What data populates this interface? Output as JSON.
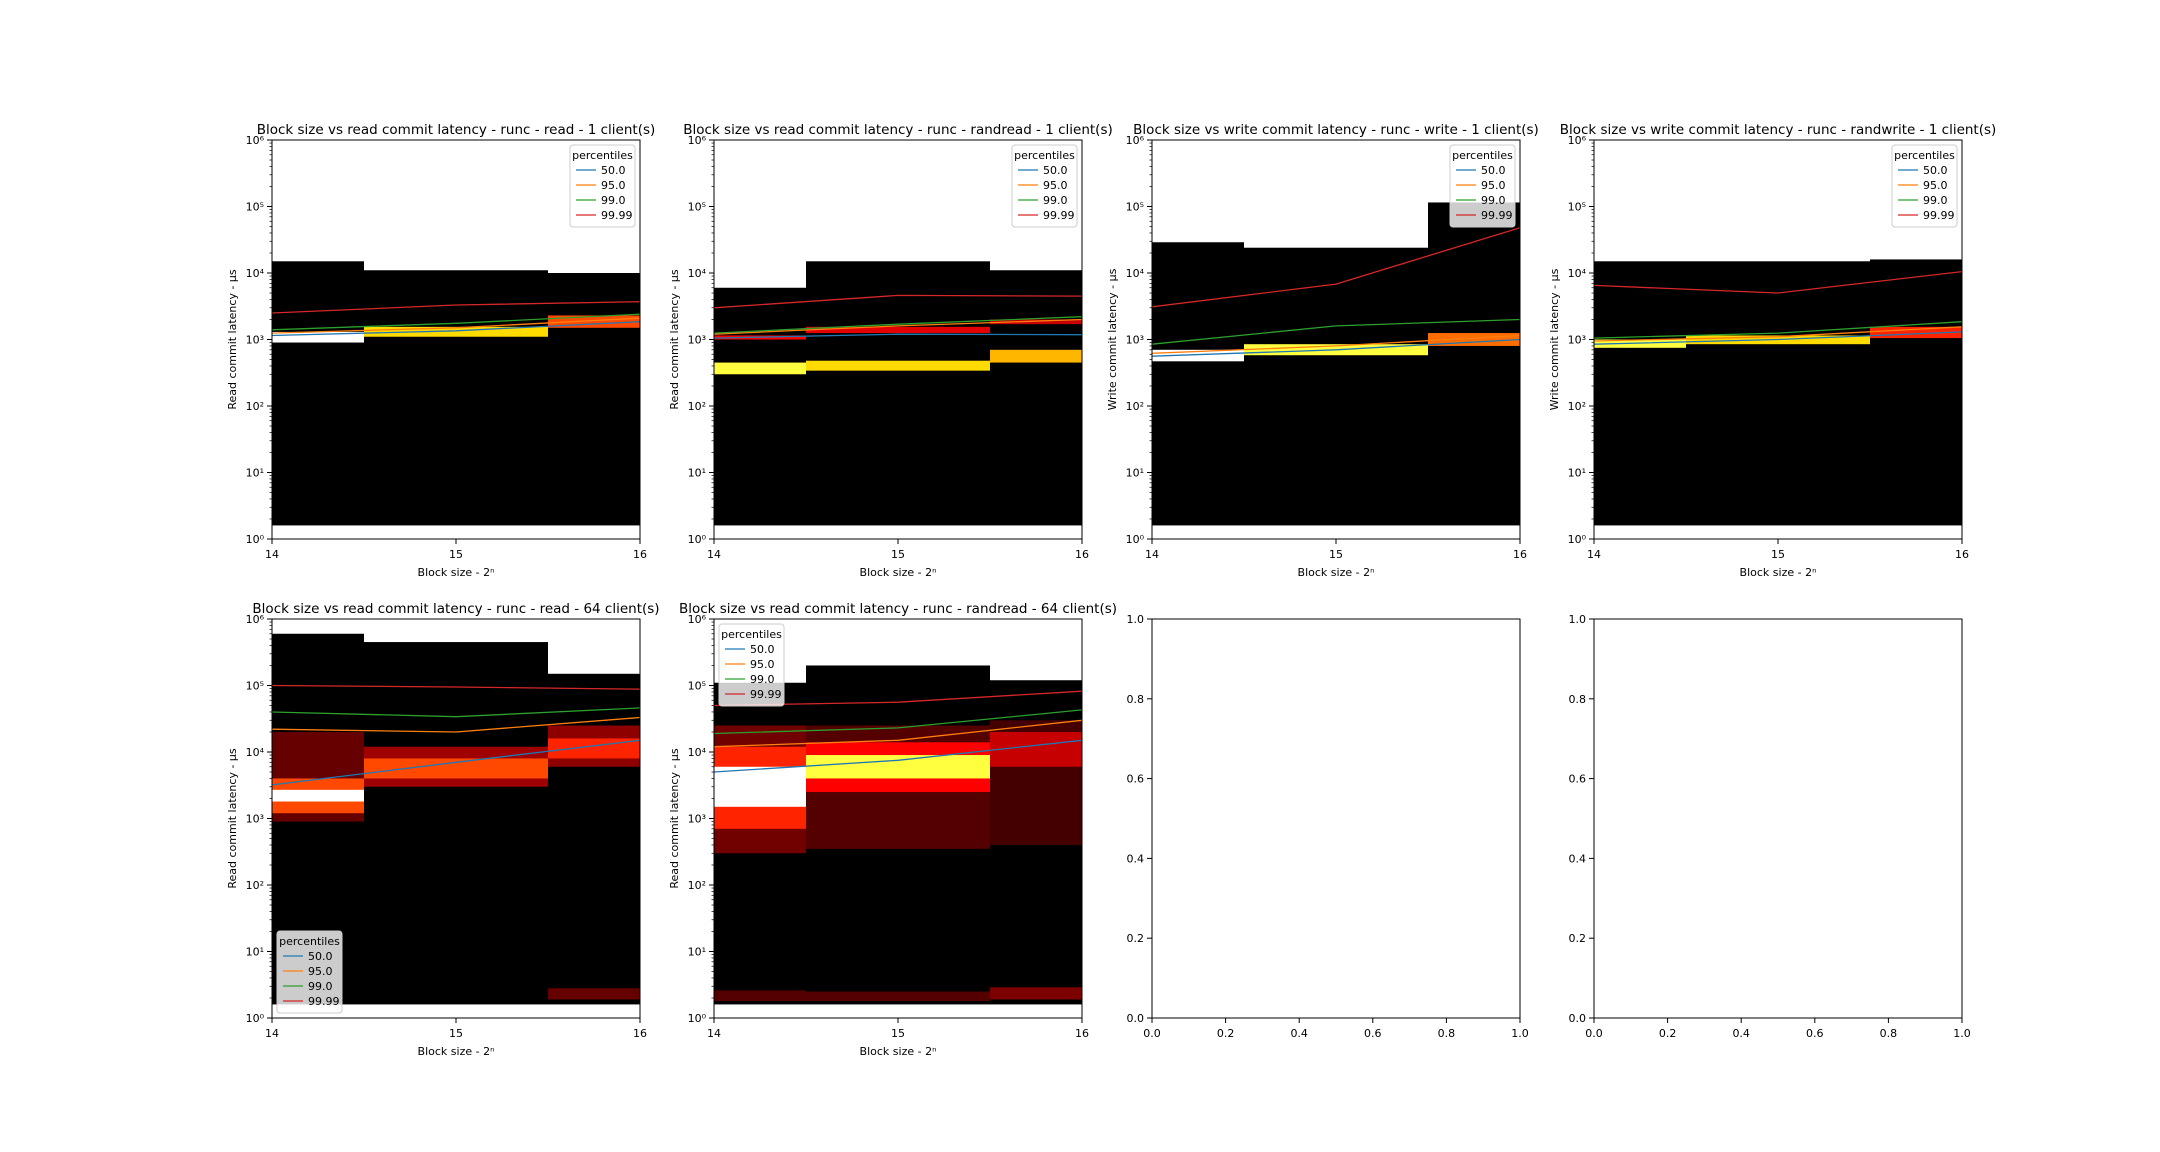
{
  "figure": {
    "background": "#ffffff"
  },
  "colors": {
    "p50": "#1f77b4",
    "p95": "#ff7f0e",
    "p99": "#2ca02c",
    "p9999": "#d62728",
    "heat_bg": "#000000"
  },
  "chart_data": [
    {
      "type": "heatmap",
      "title": "Block size vs read commit latency - runc - read - 1 client(s)",
      "xlabel": "Block size - 2ⁿ",
      "ylabel": "Read commit latency - μs",
      "xlim": [
        14,
        16
      ],
      "ylim": [
        1,
        1000000
      ],
      "yscale": "log",
      "xticks": [
        "14",
        "15",
        "16"
      ],
      "yticks": [
        "10⁰",
        "10¹",
        "10²",
        "10³",
        "10⁴",
        "10⁵",
        "10⁶"
      ],
      "legend": {
        "title": "percentiles",
        "position": "upper right",
        "entries": [
          "50.0",
          "95.0",
          "99.0",
          "99.99"
        ]
      },
      "columns": [
        {
          "x0": 14,
          "x1": 14.5,
          "ymin": 1.6,
          "ymax": 15000,
          "bands": [
            {
              "y0": 900,
              "y1": 1300,
              "i": 1.0
            }
          ]
        },
        {
          "x0": 14.5,
          "x1": 15.5,
          "ymin": 1.6,
          "ymax": 11000,
          "bands": [
            {
              "y0": 1100,
              "y1": 1550,
              "i": 0.75
            }
          ]
        },
        {
          "x0": 15.5,
          "x1": 16,
          "ymin": 1.6,
          "ymax": 10000,
          "bands": [
            {
              "y0": 1500,
              "y1": 2300,
              "i": 0.55
            }
          ]
        }
      ],
      "series": [
        {
          "name": "50.0",
          "x": [
            14,
            15,
            16
          ],
          "y": [
            1150,
            1350,
            1850
          ]
        },
        {
          "name": "95.0",
          "x": [
            14,
            15,
            16
          ],
          "y": [
            1250,
            1500,
            2100
          ]
        },
        {
          "name": "99.0",
          "x": [
            14,
            15,
            16
          ],
          "y": [
            1400,
            1750,
            2400
          ]
        },
        {
          "name": "99.99",
          "x": [
            14,
            15,
            16
          ],
          "y": [
            2500,
            3300,
            3700
          ]
        }
      ]
    },
    {
      "type": "heatmap",
      "title": "Block size vs read commit latency - runc - randread - 1 client(s)",
      "xlabel": "Block size - 2ⁿ",
      "ylabel": "Read commit latency - μs",
      "xlim": [
        14,
        16
      ],
      "ylim": [
        1,
        1000000
      ],
      "yscale": "log",
      "xticks": [
        "14",
        "15",
        "16"
      ],
      "yticks": [
        "10⁰",
        "10¹",
        "10²",
        "10³",
        "10⁴",
        "10⁵",
        "10⁶"
      ],
      "legend": {
        "title": "percentiles",
        "position": "upper right",
        "entries": [
          "50.0",
          "95.0",
          "99.0",
          "99.99"
        ]
      },
      "columns": [
        {
          "x0": 14,
          "x1": 14.5,
          "ymin": 1.6,
          "ymax": 6000,
          "bands": [
            {
              "y0": 300,
              "y1": 450,
              "i": 0.85
            },
            {
              "y0": 1000,
              "y1": 1150,
              "i": 0.45
            }
          ]
        },
        {
          "x0": 14.5,
          "x1": 15.5,
          "ymin": 1.6,
          "ymax": 15000,
          "bands": [
            {
              "y0": 340,
              "y1": 480,
              "i": 0.75
            },
            {
              "y0": 1250,
              "y1": 1550,
              "i": 0.4
            }
          ]
        },
        {
          "x0": 15.5,
          "x1": 16,
          "ymin": 1.6,
          "ymax": 11000,
          "bands": [
            {
              "y0": 450,
              "y1": 700,
              "i": 0.7
            },
            {
              "y0": 1700,
              "y1": 2000,
              "i": 0.35
            }
          ]
        }
      ],
      "series": [
        {
          "name": "50.0",
          "x": [
            14,
            15,
            16
          ],
          "y": [
            1050,
            1200,
            1180
          ]
        },
        {
          "name": "95.0",
          "x": [
            14,
            15,
            16
          ],
          "y": [
            1200,
            1600,
            2000
          ]
        },
        {
          "name": "99.0",
          "x": [
            14,
            15,
            16
          ],
          "y": [
            1250,
            1700,
            2200
          ]
        },
        {
          "name": "99.99",
          "x": [
            14,
            15,
            16
          ],
          "y": [
            3000,
            4600,
            4500
          ]
        }
      ]
    },
    {
      "type": "heatmap",
      "title": "Block size vs write commit latency - runc - write - 1 client(s)",
      "xlabel": "Block size - 2ⁿ",
      "ylabel": "Write commit latency - μs",
      "xlim": [
        14,
        16
      ],
      "ylim": [
        1,
        1000000
      ],
      "yscale": "log",
      "xticks": [
        "14",
        "15",
        "16"
      ],
      "yticks": [
        "10⁰",
        "10¹",
        "10²",
        "10³",
        "10⁴",
        "10⁵",
        "10⁶"
      ],
      "legend": {
        "title": "percentiles",
        "position": "upper right",
        "entries": [
          "50.0",
          "95.0",
          "99.0",
          "99.99"
        ]
      },
      "columns": [
        {
          "x0": 14,
          "x1": 14.5,
          "ymin": 1.6,
          "ymax": 29000,
          "bands": [
            {
              "y0": 470,
              "y1": 700,
              "i": 1.0
            }
          ]
        },
        {
          "x0": 14.5,
          "x1": 15.5,
          "ymin": 1.6,
          "ymax": 24000,
          "bands": [
            {
              "y0": 580,
              "y1": 850,
              "i": 0.85
            }
          ]
        },
        {
          "x0": 15.5,
          "x1": 16,
          "ymin": 1.6,
          "ymax": 115000,
          "bands": [
            {
              "y0": 800,
              "y1": 1250,
              "i": 0.6
            }
          ]
        }
      ],
      "series": [
        {
          "name": "50.0",
          "x": [
            14,
            15,
            16
          ],
          "y": [
            560,
            700,
            1000
          ]
        },
        {
          "name": "95.0",
          "x": [
            14,
            15,
            16
          ],
          "y": [
            620,
            800,
            1150
          ]
        },
        {
          "name": "99.0",
          "x": [
            14,
            15,
            16
          ],
          "y": [
            850,
            1600,
            2000
          ]
        },
        {
          "name": "99.99",
          "x": [
            14,
            15,
            16
          ],
          "y": [
            3100,
            6800,
            48000
          ]
        }
      ]
    },
    {
      "type": "heatmap",
      "title": "Block size vs write commit latency - runc - randwrite - 1 client(s)",
      "xlabel": "Block size - 2ⁿ",
      "ylabel": "Write commit latency - μs",
      "xlim": [
        14,
        16
      ],
      "ylim": [
        1,
        1000000
      ],
      "yscale": "log",
      "xticks": [
        "14",
        "15",
        "16"
      ],
      "yticks": [
        "10⁰",
        "10¹",
        "10²",
        "10³",
        "10⁴",
        "10⁵",
        "10⁶"
      ],
      "legend": {
        "title": "percentiles",
        "position": "upper right",
        "entries": [
          "50.0",
          "95.0",
          "99.0",
          "99.99"
        ]
      },
      "columns": [
        {
          "x0": 14,
          "x1": 14.5,
          "ymin": 1.6,
          "ymax": 15000,
          "bands": [
            {
              "y0": 750,
              "y1": 1000,
              "i": 0.85
            }
          ]
        },
        {
          "x0": 14.5,
          "x1": 15.5,
          "ymin": 1.6,
          "ymax": 15000,
          "bands": [
            {
              "y0": 850,
              "y1": 1150,
              "i": 0.75
            }
          ]
        },
        {
          "x0": 15.5,
          "x1": 16,
          "ymin": 1.6,
          "ymax": 16000,
          "bands": [
            {
              "y0": 1050,
              "y1": 1550,
              "i": 0.5
            }
          ]
        }
      ],
      "series": [
        {
          "name": "50.0",
          "x": [
            14,
            15,
            16
          ],
          "y": [
            850,
            1000,
            1300
          ]
        },
        {
          "name": "95.0",
          "x": [
            14,
            15,
            16
          ],
          "y": [
            950,
            1100,
            1550
          ]
        },
        {
          "name": "99.0",
          "x": [
            14,
            15,
            16
          ],
          "y": [
            1050,
            1250,
            1850
          ]
        },
        {
          "name": "99.99",
          "x": [
            14,
            15,
            16
          ],
          "y": [
            6500,
            5000,
            10500
          ]
        }
      ]
    },
    {
      "type": "heatmap",
      "title": "Block size vs read commit latency - runc - read - 64 client(s)",
      "xlabel": "Block size - 2ⁿ",
      "ylabel": "Read commit latency - μs",
      "xlim": [
        14,
        16
      ],
      "ylim": [
        1,
        1000000
      ],
      "yscale": "log",
      "xticks": [
        "14",
        "15",
        "16"
      ],
      "yticks": [
        "10⁰",
        "10¹",
        "10²",
        "10³",
        "10⁴",
        "10⁵",
        "10⁶"
      ],
      "legend": {
        "title": "percentiles",
        "position": "lower left",
        "entries": [
          "50.0",
          "95.0",
          "99.0",
          "99.99"
        ]
      },
      "columns": [
        {
          "x0": 14,
          "x1": 14.5,
          "ymin": 1.6,
          "ymax": 600000,
          "bands": [
            {
              "y0": 1800,
              "y1": 2700,
              "i": 1.0
            },
            {
              "y0": 1200,
              "y1": 4000,
              "i": 0.55
            },
            {
              "y0": 900,
              "y1": 20000,
              "i": 0.18
            }
          ]
        },
        {
          "x0": 14.5,
          "x1": 15.5,
          "ymin": 1.6,
          "ymax": 450000,
          "bands": [
            {
              "y0": 4000,
              "y1": 8000,
              "i": 0.55
            },
            {
              "y0": 3000,
              "y1": 12000,
              "i": 0.28
            }
          ]
        },
        {
          "x0": 15.5,
          "x1": 16,
          "ymin": 1.6,
          "ymax": 150000,
          "bands": [
            {
              "y0": 8000,
              "y1": 16000,
              "i": 0.5
            },
            {
              "y0": 6000,
              "y1": 25000,
              "i": 0.25
            },
            {
              "y0": 1.9,
              "y1": 2.8,
              "i": 0.18
            }
          ]
        }
      ],
      "series": [
        {
          "name": "50.0",
          "x": [
            14,
            15,
            16
          ],
          "y": [
            3200,
            7000,
            15000
          ]
        },
        {
          "name": "95.0",
          "x": [
            14,
            15,
            16
          ],
          "y": [
            22000,
            20000,
            33000
          ]
        },
        {
          "name": "99.0",
          "x": [
            14,
            15,
            16
          ],
          "y": [
            40000,
            34000,
            46000
          ]
        },
        {
          "name": "99.99",
          "x": [
            14,
            15,
            16
          ],
          "y": [
            100000,
            95000,
            88000
          ]
        }
      ]
    },
    {
      "type": "heatmap",
      "title": "Block size vs read commit latency - runc - randread - 64 client(s)",
      "xlabel": "Block size - 2ⁿ",
      "ylabel": "Read commit latency - μs",
      "xlim": [
        14,
        16
      ],
      "ylim": [
        1,
        1000000
      ],
      "yscale": "log",
      "xticks": [
        "14",
        "15",
        "16"
      ],
      "yticks": [
        "10⁰",
        "10¹",
        "10²",
        "10³",
        "10⁴",
        "10⁵",
        "10⁶"
      ],
      "legend": {
        "title": "percentiles",
        "position": "upper left",
        "entries": [
          "50.0",
          "95.0",
          "99.0",
          "99.99"
        ]
      },
      "columns": [
        {
          "x0": 14,
          "x1": 14.5,
          "ymin": 1.6,
          "ymax": 110000,
          "bands": [
            {
              "y0": 1500,
              "y1": 6000,
              "i": 1.0
            },
            {
              "y0": 700,
              "y1": 12000,
              "i": 0.5
            },
            {
              "y0": 300,
              "y1": 25000,
              "i": 0.2
            },
            {
              "y0": 1.8,
              "y1": 2.6,
              "i": 0.15
            }
          ]
        },
        {
          "x0": 14.5,
          "x1": 15.5,
          "ymin": 1.6,
          "ymax": 200000,
          "bands": [
            {
              "y0": 4000,
              "y1": 9000,
              "i": 0.85
            },
            {
              "y0": 2500,
              "y1": 14000,
              "i": 0.45
            },
            {
              "y0": 350,
              "y1": 25000,
              "i": 0.15
            },
            {
              "y0": 1.8,
              "y1": 2.5,
              "i": 0.15
            }
          ]
        },
        {
          "x0": 15.5,
          "x1": 16,
          "ymin": 1.6,
          "ymax": 120000,
          "bands": [
            {
              "y0": 6000,
              "y1": 20000,
              "i": 0.35
            },
            {
              "y0": 400,
              "y1": 30000,
              "i": 0.12
            },
            {
              "y0": 1.9,
              "y1": 2.9,
              "i": 0.22
            }
          ]
        }
      ],
      "series": [
        {
          "name": "50.0",
          "x": [
            14,
            15,
            16
          ],
          "y": [
            5000,
            7500,
            15000
          ]
        },
        {
          "name": "95.0",
          "x": [
            14,
            15,
            16
          ],
          "y": [
            12000,
            15000,
            30000
          ]
        },
        {
          "name": "99.0",
          "x": [
            14,
            15,
            16
          ],
          "y": [
            19000,
            23000,
            43000
          ]
        },
        {
          "name": "99.99",
          "x": [
            14,
            15,
            16
          ],
          "y": [
            50000,
            56000,
            82000
          ]
        }
      ]
    },
    {
      "type": "empty",
      "title": "",
      "xlabel": "",
      "ylabel": "",
      "xlim": [
        0,
        1
      ],
      "ylim": [
        0,
        1
      ],
      "xticks": [
        "0.0",
        "0.2",
        "0.4",
        "0.6",
        "0.8",
        "1.0"
      ],
      "yticks": [
        "0.0",
        "0.2",
        "0.4",
        "0.6",
        "0.8",
        "1.0"
      ]
    },
    {
      "type": "empty",
      "title": "",
      "xlabel": "",
      "ylabel": "",
      "xlim": [
        0,
        1
      ],
      "ylim": [
        0,
        1
      ],
      "xticks": [
        "0.0",
        "0.2",
        "0.4",
        "0.6",
        "0.8",
        "1.0"
      ],
      "yticks": [
        "0.0",
        "0.2",
        "0.4",
        "0.6",
        "0.8",
        "1.0"
      ]
    }
  ]
}
